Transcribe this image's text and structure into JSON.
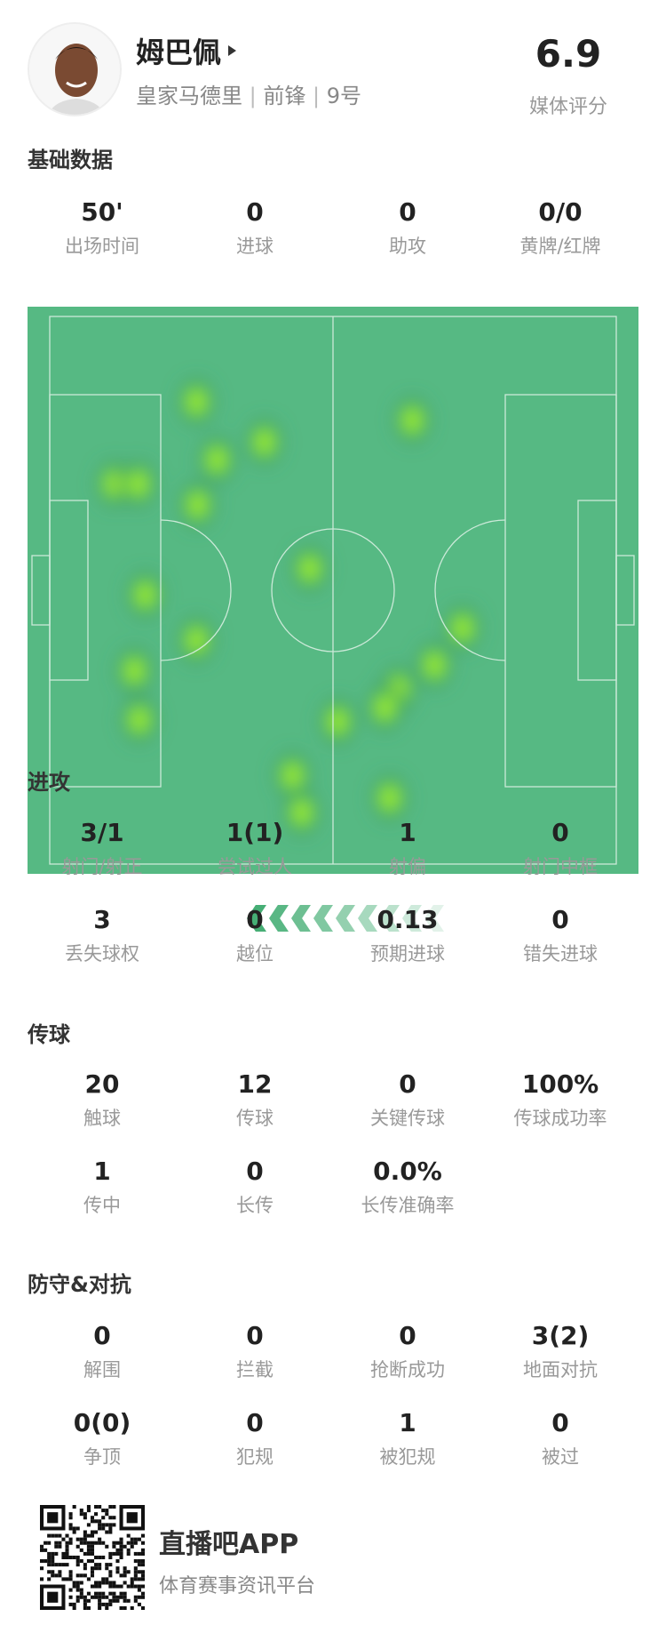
{
  "player": {
    "name": "姆巴佩",
    "team": "皇家马德里",
    "position": "前锋",
    "number": "9号",
    "rating": "6.9",
    "rating_label": "媒体评分"
  },
  "basic": {
    "title": "基础数据",
    "stats": [
      {
        "value": "50'",
        "label": "出场时间"
      },
      {
        "value": "0",
        "label": "进球"
      },
      {
        "value": "0",
        "label": "助攻"
      },
      {
        "value": "0/0",
        "label": "黄牌/红牌"
      }
    ]
  },
  "heatmap": {
    "pitch_units": "meters (105x68)",
    "pitch_color": "#56b983",
    "hot_color": "#a8e830",
    "points": [
      [
        27.2,
        10.6
      ],
      [
        39.8,
        15.6
      ],
      [
        12.0,
        20.8
      ],
      [
        16.4,
        20.8
      ],
      [
        31.0,
        17.8
      ],
      [
        27.4,
        23.4
      ],
      [
        67.2,
        12.9
      ],
      [
        48.2,
        31.3
      ],
      [
        17.7,
        34.6
      ],
      [
        27.2,
        40.2
      ],
      [
        15.7,
        44.0
      ],
      [
        16.6,
        50.1
      ],
      [
        76.5,
        38.7
      ],
      [
        71.3,
        43.3
      ],
      [
        64.6,
        46.3
      ],
      [
        62.1,
        48.6
      ],
      [
        53.4,
        50.3
      ],
      [
        45.0,
        57.0
      ],
      [
        46.7,
        61.6
      ],
      [
        63.0,
        59.8
      ]
    ],
    "attack_direction": "left"
  },
  "attack": {
    "title": "进攻",
    "stats": [
      {
        "value": "3/1",
        "label": "射门/射正"
      },
      {
        "value": "1(1)",
        "label": "尝试过人"
      },
      {
        "value": "1",
        "label": "射偏"
      },
      {
        "value": "0",
        "label": "射门中框"
      },
      {
        "value": "3",
        "label": "丢失球权"
      },
      {
        "value": "0",
        "label": "越位"
      },
      {
        "value": "0.13",
        "label": "预期进球"
      },
      {
        "value": "0",
        "label": "错失进球"
      }
    ]
  },
  "passing": {
    "title": "传球",
    "stats": [
      {
        "value": "20",
        "label": "触球"
      },
      {
        "value": "12",
        "label": "传球"
      },
      {
        "value": "0",
        "label": "关键传球"
      },
      {
        "value": "100%",
        "label": "传球成功率"
      },
      {
        "value": "1",
        "label": "传中"
      },
      {
        "value": "0",
        "label": "长传"
      },
      {
        "value": "0.0%",
        "label": "长传准确率"
      }
    ]
  },
  "defense": {
    "title": "防守&对抗",
    "stats": [
      {
        "value": "0",
        "label": "解围"
      },
      {
        "value": "0",
        "label": "拦截"
      },
      {
        "value": "0",
        "label": "抢断成功"
      },
      {
        "value": "3(2)",
        "label": "地面对抗"
      },
      {
        "value": "0(0)",
        "label": "争顶"
      },
      {
        "value": "0",
        "label": "犯规"
      },
      {
        "value": "1",
        "label": "被犯规"
      },
      {
        "value": "0",
        "label": "被过"
      }
    ]
  },
  "footer": {
    "app_name": "直播吧APP",
    "slogan": "体育赛事资讯平台"
  }
}
